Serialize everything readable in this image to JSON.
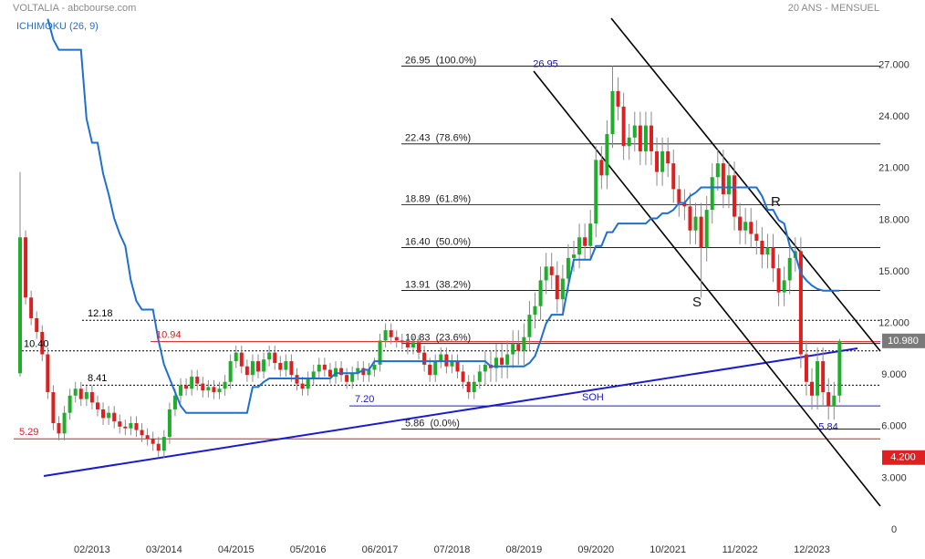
{
  "chart_data": {
    "type": "candlestick",
    "title": "VOLTALIA - abcbourse.com",
    "subtitle": "20 ANS - MENSUEL",
    "up_color": "#1fae2a",
    "down_color": "#dc2020",
    "categories": [
      null,
      null,
      null,
      null,
      null,
      null,
      null,
      null,
      null,
      null,
      null,
      null,
      null,
      "02/2013",
      null,
      null,
      null,
      null,
      null,
      null,
      null,
      null,
      null,
      null,
      null,
      null,
      "03/2014",
      null,
      null,
      null,
      null,
      null,
      null,
      null,
      null,
      null,
      null,
      null,
      null,
      "04/2015",
      null,
      null,
      null,
      null,
      null,
      null,
      null,
      null,
      null,
      null,
      null,
      null,
      "05/2016",
      null,
      null,
      null,
      null,
      null,
      null,
      null,
      null,
      null,
      null,
      null,
      null,
      "06/2017",
      null,
      null,
      null,
      null,
      null,
      null,
      null,
      null,
      null,
      null,
      null,
      null,
      "07/2018",
      null,
      null,
      null,
      null,
      null,
      null,
      null,
      null,
      null,
      null,
      null,
      null,
      "08/2019",
      null,
      null,
      null,
      null,
      null,
      null,
      null,
      null,
      null,
      null,
      null,
      null,
      "09/2020",
      null,
      null,
      null,
      null,
      null,
      null,
      null,
      null,
      null,
      null,
      null,
      null,
      "10/2021",
      null,
      null,
      null,
      null,
      null,
      null,
      null,
      null,
      null,
      null,
      null,
      null,
      "11/2022",
      null,
      null,
      null,
      null,
      null,
      null,
      null,
      null,
      null,
      null,
      null,
      null,
      "12/2023",
      null,
      null,
      null,
      null,
      null
    ],
    "open": [
      9.1,
      17.0,
      13.5,
      12.3,
      11.5,
      10.2,
      8.0,
      6.2,
      5.6,
      6.8,
      7.8,
      8.2,
      7.6,
      8.0,
      7.4,
      7.0,
      6.5,
      6.8,
      6.3,
      6.0,
      5.9,
      6.2,
      5.8,
      5.5,
      5.3,
      5.0,
      4.6,
      5.4,
      7.0,
      7.8,
      8.4,
      8.2,
      8.9,
      8.5,
      8.1,
      8.3,
      8.0,
      8.2,
      8.6,
      9.8,
      10.3,
      9.5,
      9.0,
      9.8,
      9.2,
      9.9,
      10.3,
      9.7,
      9.3,
      9.8,
      9.0,
      8.5,
      8.2,
      8.8,
      9.2,
      9.6,
      9.3,
      8.9,
      9.4,
      9.0,
      8.6,
      9.1,
      9.4,
      9.0,
      9.3,
      9.6,
      11.0,
      11.6,
      11.2,
      11.0,
      10.9,
      10.6,
      10.9,
      10.3,
      9.6,
      9.0,
      9.8,
      10.2,
      9.5,
      9.8,
      9.2,
      8.6,
      8.0,
      8.6,
      9.2,
      9.6,
      9.4,
      10.0,
      9.6,
      10.2,
      10.8,
      10.4,
      11.2,
      12.5,
      13.0,
      14.5,
      15.3,
      14.8,
      13.4,
      14.6,
      15.8,
      16.0,
      17.0,
      16.5,
      17.8,
      21.5,
      20.6,
      23.0,
      25.5,
      24.6,
      22.3,
      22.8,
      23.5,
      22.0,
      23.5,
      22.0,
      20.8,
      22.0,
      21.3,
      19.8,
      19.0,
      18.8,
      17.4,
      18.2,
      16.4,
      18.6,
      20.5,
      21.3,
      19.5,
      20.6,
      18.2,
      17.4,
      17.9,
      17.2,
      16.8,
      16.0,
      16.4,
      15.2,
      13.8,
      14.5,
      15.8,
      16.2,
      10.2,
      8.6,
      7.8,
      9.8,
      8.0,
      7.2,
      7.8
    ],
    "high": [
      20.8,
      17.4,
      13.9,
      12.7,
      11.9,
      10.6,
      8.4,
      6.6,
      7.2,
      8.2,
      8.6,
      8.6,
      8.4,
      8.4,
      7.8,
      7.4,
      7.2,
      7.2,
      6.7,
      6.4,
      6.6,
      6.6,
      6.2,
      5.9,
      5.7,
      5.4,
      5.8,
      7.4,
      8.2,
      8.8,
      8.8,
      9.3,
      9.3,
      8.9,
      8.7,
      8.7,
      8.6,
      9.0,
      10.2,
      10.7,
      10.7,
      9.9,
      10.2,
      10.2,
      10.3,
      10.7,
      10.7,
      10.1,
      10.2,
      10.2,
      9.4,
      8.9,
      9.2,
      9.6,
      10.0,
      10.0,
      9.7,
      9.8,
      9.8,
      9.4,
      9.5,
      9.8,
      9.8,
      9.7,
      10.0,
      11.4,
      12.0,
      12.0,
      11.6,
      11.4,
      11.3,
      11.3,
      11.3,
      10.7,
      10.0,
      10.2,
      10.6,
      10.6,
      10.2,
      10.2,
      9.6,
      9.0,
      9.0,
      9.6,
      10.4,
      10.4,
      10.8,
      10.8,
      11.0,
      11.6,
      11.6,
      12.0,
      13.3,
      13.8,
      15.3,
      16.1,
      16.1,
      15.6,
      15.4,
      16.6,
      16.8,
      17.8,
      17.8,
      18.6,
      22.3,
      22.3,
      23.8,
      26.95,
      26.3,
      25.4,
      23.6,
      24.3,
      24.3,
      24.3,
      24.3,
      22.8,
      22.8,
      22.8,
      22.1,
      20.6,
      19.8,
      19.6,
      19.0,
      19.0,
      19.4,
      21.3,
      22.1,
      22.1,
      21.4,
      21.4,
      19.0,
      18.7,
      18.7,
      18.0,
      17.6,
      17.2,
      17.2,
      16.0,
      15.3,
      16.6,
      17.0,
      17.0,
      11.0,
      9.4,
      10.6,
      10.6,
      8.8,
      8.6,
      11.1
    ],
    "low": [
      8.9,
      13.1,
      11.9,
      11.1,
      9.8,
      7.6,
      5.8,
      5.2,
      5.2,
      6.4,
      7.4,
      7.2,
      7.2,
      7.0,
      6.6,
      6.1,
      6.1,
      5.9,
      5.6,
      5.5,
      5.5,
      5.4,
      5.1,
      4.9,
      4.6,
      4.2,
      4.2,
      5.0,
      6.6,
      7.4,
      7.8,
      7.8,
      8.1,
      7.7,
      7.7,
      7.6,
      7.6,
      7.8,
      8.2,
      9.4,
      9.1,
      8.6,
      8.6,
      8.8,
      8.8,
      9.5,
      9.3,
      8.9,
      8.9,
      8.6,
      8.1,
      7.8,
      7.8,
      8.4,
      8.8,
      8.9,
      8.5,
      8.5,
      8.6,
      8.2,
      8.2,
      8.7,
      8.6,
      8.6,
      8.9,
      9.2,
      10.6,
      10.8,
      10.6,
      10.5,
      10.2,
      10.2,
      9.9,
      9.2,
      8.6,
      8.6,
      9.4,
      9.1,
      9.1,
      8.8,
      8.2,
      7.6,
      7.6,
      8.2,
      8.4,
      8.6,
      8.6,
      8.8,
      8.8,
      9.4,
      9.6,
      9.6,
      10.4,
      11.7,
      12.2,
      13.7,
      14.0,
      12.6,
      12.6,
      13.8,
      15.0,
      15.2,
      15.7,
      15.7,
      17.0,
      19.8,
      19.8,
      22.2,
      23.8,
      21.5,
      21.5,
      22.0,
      21.2,
      21.2,
      21.2,
      20.0,
      20.0,
      20.5,
      19.0,
      18.2,
      18.0,
      16.6,
      16.6,
      13.5,
      15.6,
      17.8,
      19.7,
      18.7,
      18.7,
      17.4,
      16.6,
      16.6,
      16.4,
      16.0,
      15.2,
      15.2,
      14.4,
      13.0,
      13.0,
      13.7,
      15.0,
      9.4,
      7.8,
      7.0,
      7.0,
      7.2,
      6.4,
      6.4,
      7.4
    ],
    "close": [
      17.0,
      13.5,
      12.3,
      11.5,
      10.2,
      8.0,
      6.2,
      5.6,
      6.8,
      7.8,
      8.2,
      7.6,
      8.0,
      7.4,
      7.0,
      6.5,
      6.8,
      6.3,
      6.0,
      5.9,
      6.2,
      5.8,
      5.5,
      5.3,
      5.0,
      4.6,
      5.4,
      7.0,
      7.8,
      8.4,
      8.2,
      8.9,
      8.5,
      8.1,
      8.3,
      8.0,
      8.2,
      8.6,
      9.8,
      10.3,
      9.5,
      9.0,
      9.8,
      9.2,
      9.9,
      10.3,
      9.7,
      9.3,
      9.8,
      9.0,
      8.5,
      8.2,
      8.8,
      9.2,
      9.6,
      9.3,
      8.9,
      9.4,
      9.0,
      8.6,
      9.1,
      9.4,
      9.0,
      9.3,
      9.6,
      11.0,
      11.6,
      11.2,
      11.0,
      10.9,
      10.6,
      10.9,
      10.3,
      9.6,
      9.0,
      9.8,
      10.2,
      9.5,
      9.8,
      9.2,
      8.6,
      8.0,
      8.6,
      9.2,
      9.6,
      9.4,
      10.0,
      9.6,
      10.2,
      10.8,
      10.4,
      11.2,
      12.5,
      13.0,
      14.5,
      15.3,
      14.8,
      13.4,
      14.6,
      15.8,
      16.0,
      17.0,
      16.5,
      17.8,
      21.5,
      20.6,
      23.0,
      25.5,
      24.6,
      22.3,
      22.8,
      23.5,
      22.0,
      23.5,
      22.0,
      20.8,
      22.0,
      21.3,
      19.8,
      19.0,
      18.8,
      17.4,
      18.2,
      16.4,
      18.6,
      20.5,
      21.3,
      19.5,
      20.6,
      18.2,
      17.4,
      17.9,
      17.2,
      16.8,
      16.0,
      16.4,
      15.2,
      13.8,
      14.5,
      15.8,
      16.2,
      10.2,
      8.6,
      7.8,
      9.8,
      8.0,
      7.2,
      7.8,
      10.98
    ],
    "overlay": {
      "name": "ICHIMOKU (26, 9)",
      "color": "#1f6fd0",
      "values": [
        null,
        null,
        null,
        null,
        null,
        29.7,
        28.5,
        27.9,
        27.9,
        27.9,
        27.9,
        27.9,
        23.9,
        22.5,
        22.5,
        20.7,
        19.5,
        18.1,
        17.2,
        16.5,
        14.5,
        13.3,
        12.8,
        12.8,
        12.8,
        11.0,
        9.6,
        8.8,
        8.0,
        7.2,
        6.8,
        6.8,
        6.8,
        6.8,
        6.8,
        6.8,
        6.8,
        6.8,
        6.8,
        6.8,
        6.8,
        6.8,
        8.3,
        8.3,
        8.6,
        8.8,
        8.8,
        8.8,
        8.8,
        8.8,
        8.8,
        8.8,
        8.8,
        8.8,
        8.8,
        8.8,
        8.8,
        9.1,
        9.1,
        9.1,
        9.1,
        9.1,
        9.3,
        9.3,
        9.8,
        9.8,
        9.8,
        9.8,
        9.8,
        9.8,
        9.8,
        9.8,
        9.8,
        9.8,
        9.8,
        9.8,
        9.8,
        9.8,
        9.8,
        9.8,
        9.8,
        9.8,
        9.8,
        9.8,
        9.8,
        9.5,
        9.5,
        9.5,
        9.5,
        9.5,
        9.5,
        9.5,
        9.7,
        10.1,
        11.0,
        12.0,
        12.5,
        12.5,
        12.5,
        14.2,
        15.7,
        15.7,
        15.7,
        15.7,
        16.5,
        16.5,
        17.3,
        17.3,
        17.8,
        17.8,
        17.8,
        17.8,
        17.8,
        17.8,
        18.1,
        18.1,
        18.4,
        18.4,
        18.6,
        19.0,
        19.0,
        19.4,
        19.6,
        19.9,
        19.9,
        19.9,
        19.9,
        19.9,
        19.9,
        19.9,
        19.9,
        19.9,
        19.9,
        19.9,
        19.4,
        18.6,
        18.6,
        18.0,
        17.8,
        16.5,
        16.0,
        14.9,
        14.5,
        14.2,
        14.0,
        13.9,
        13.9,
        13.9,
        13.9
      ]
    },
    "ylim": [
      0,
      30
    ],
    "yticks": [
      0,
      {
        "value": 3,
        "label": "3.000"
      },
      {
        "value": 6,
        "label": "6.000"
      },
      {
        "value": 9,
        "label": "9.000"
      },
      {
        "value": 12,
        "label": "12.000"
      },
      {
        "value": 15,
        "label": "15.000"
      },
      {
        "value": 18,
        "label": "18.000"
      },
      {
        "value": 21,
        "label": "21.000"
      },
      {
        "value": 24,
        "label": "24.000"
      },
      {
        "value": 27,
        "label": "27.000"
      }
    ],
    "grid": false,
    "fibonacci": [
      {
        "value": 26.95,
        "label": "26.95  (100.0%)"
      },
      {
        "value": 22.43,
        "label": "22.43  (78.6%)"
      },
      {
        "value": 18.89,
        "label": "18.89  (61.8%)"
      },
      {
        "value": 16.4,
        "label": "16.40  (50.0%)"
      },
      {
        "value": 13.91,
        "label": "13.91  (38.2%)"
      },
      {
        "value": 10.83,
        "label": "10.83  (23.6%)"
      },
      {
        "value": 5.86,
        "label": "5.86  (0.0%)"
      }
    ],
    "levels": [
      {
        "value": 12.18,
        "color": "#000000",
        "style": "dotted"
      },
      {
        "value": 10.4,
        "label": "10.40",
        "color": "#000000",
        "style": "dotted"
      },
      {
        "value": 8.41,
        "color": "#000000",
        "style": "dotted"
      },
      {
        "value": 10.94,
        "color": "#d42020",
        "style": "solid"
      },
      {
        "value": 5.29,
        "color": "#d42020",
        "style": "solid"
      },
      {
        "value": 7.2,
        "label": "7.20",
        "color": "#1a1ad0",
        "style": "solid"
      }
    ],
    "value_notes": [
      {
        "value": 26.95,
        "color": "#1a1a9a"
      },
      {
        "value": 5.84,
        "color": "#1a1a9a"
      }
    ],
    "price_tags": [
      {
        "value": 10.98,
        "label": "10.980",
        "color": "#7a7a7a"
      },
      {
        "value": 4.2,
        "label": "4.200",
        "color": "#e02020"
      }
    ],
    "annotations": [
      "SOH",
      "R",
      "S"
    ]
  }
}
